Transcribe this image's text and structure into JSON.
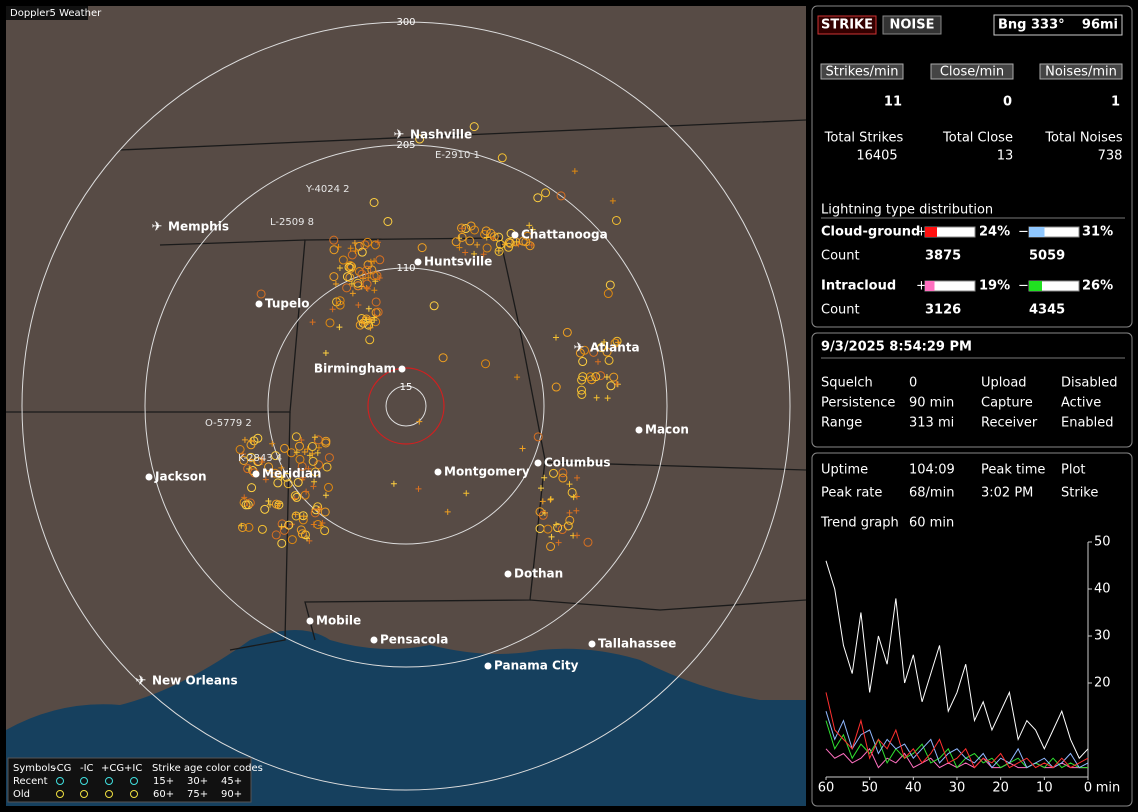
{
  "map": {
    "title": "Doppler5 Weather",
    "rings": [
      "300",
      "205",
      "110",
      "15"
    ],
    "cities": [
      "Nashville",
      "Chattanooga",
      "Memphis",
      "Huntsville",
      "Tupelo",
      "Atlanta",
      "Birmingham",
      "Macon",
      "Jackson",
      "Meridian",
      "Montgomery",
      "Columbus",
      "Dothan",
      "Mobile",
      "Pensacola",
      "Tallahassee",
      "Panama City",
      "New Orleans"
    ],
    "storms": [
      "E-2910 1",
      "Y-4024 2",
      "L-2509 8",
      "O-5779 2",
      "K-2843 4"
    ],
    "legend": {
      "symbols": "Symbols",
      "types": [
        "-CG",
        "-IC",
        "+CG",
        "+IC"
      ],
      "age_title": "Strike age color codes",
      "recent": "Recent",
      "old": "Old",
      "recent_ages": [
        "15+",
        "30+",
        "45+"
      ],
      "old_ages": [
        "60+",
        "75+",
        "90+"
      ]
    }
  },
  "status": {
    "strike": "STRIKE",
    "noise": "NOISE",
    "bearing": "Bng 333°",
    "distance": "96mi"
  },
  "counters": [
    {
      "label": "Strikes/min",
      "value": 11,
      "total_label": "Total Strikes",
      "total": 16405
    },
    {
      "label": "Close/min",
      "value": 0,
      "total_label": "Total Close",
      "total": 13
    },
    {
      "label": "Noises/min",
      "value": 1,
      "total_label": "Total Noises",
      "total": 738
    }
  ],
  "distribution": {
    "title": "Lightning type distribution",
    "rows": [
      {
        "name": "Cloud-ground",
        "plus": "+",
        "plus_pct": "24%",
        "minus": "−",
        "minus_pct": "31%",
        "count_label": "Count",
        "plus_count": 3875,
        "minus_count": 5059
      },
      {
        "name": "Intracloud",
        "plus": "+",
        "plus_pct": "19%",
        "minus": "−",
        "minus_pct": "26%",
        "count_label": "Count",
        "plus_count": 3126,
        "minus_count": 4345
      }
    ]
  },
  "clock": {
    "datetime": "9/3/2025 8:54:29 PM",
    "settings": [
      [
        "Squelch",
        "0",
        "Upload",
        "Disabled"
      ],
      [
        "Persistence",
        "90 min",
        "Capture",
        "Active"
      ],
      [
        "Range",
        "313 mi",
        "Receiver",
        "Enabled"
      ]
    ]
  },
  "stats": {
    "rows": [
      [
        "Uptime",
        "104:09",
        "Peak time",
        "Plot"
      ],
      [
        "Peak rate",
        "68/min",
        "3:02 PM",
        "Strike"
      ]
    ],
    "trend_label": "Trend graph",
    "trend_span": "60 min"
  },
  "trend": {
    "xlim": [
      60,
      0
    ],
    "ylim": [
      0,
      50
    ],
    "xticks": [
      60,
      50,
      40,
      30,
      20,
      10,
      0
    ],
    "xunit": "min",
    "yticks": [
      20,
      30,
      40,
      50
    ],
    "x": [
      60,
      58,
      56,
      54,
      52,
      50,
      48,
      46,
      44,
      42,
      40,
      38,
      36,
      34,
      32,
      30,
      28,
      26,
      24,
      22,
      20,
      18,
      16,
      14,
      12,
      10,
      8,
      6,
      4,
      2,
      0
    ],
    "series": [
      {
        "color": "#ffffff",
        "values": [
          46,
          40,
          28,
          22,
          35,
          18,
          30,
          24,
          38,
          20,
          26,
          16,
          22,
          28,
          14,
          18,
          24,
          12,
          16,
          10,
          14,
          18,
          8,
          12,
          10,
          6,
          10,
          14,
          8,
          4,
          6
        ]
      },
      {
        "color": "#ff3030",
        "values": [
          18,
          10,
          8,
          6,
          12,
          4,
          8,
          6,
          10,
          4,
          6,
          3,
          5,
          8,
          3,
          4,
          6,
          2,
          4,
          3,
          5,
          2,
          3,
          4,
          2,
          3,
          2,
          4,
          2,
          3,
          4
        ]
      },
      {
        "color": "#90b8ff",
        "values": [
          14,
          8,
          12,
          6,
          9,
          10,
          5,
          8,
          6,
          7,
          4,
          6,
          8,
          3,
          5,
          6,
          4,
          3,
          5,
          2,
          4,
          3,
          6,
          2,
          3,
          4,
          2,
          3,
          5,
          2,
          3
        ]
      },
      {
        "color": "#30e030",
        "values": [
          12,
          6,
          9,
          4,
          7,
          5,
          8,
          3,
          6,
          4,
          5,
          7,
          3,
          4,
          6,
          2,
          4,
          5,
          3,
          4,
          2,
          3,
          4,
          2,
          3,
          2,
          4,
          2,
          3,
          2,
          2
        ]
      },
      {
        "color": "#ff70c0",
        "values": [
          6,
          4,
          5,
          3,
          4,
          6,
          2,
          4,
          3,
          5,
          2,
          3,
          4,
          2,
          3,
          2,
          3,
          2,
          4,
          2,
          2,
          3,
          2,
          2,
          3,
          2,
          2,
          3,
          2,
          2,
          2
        ]
      }
    ]
  }
}
